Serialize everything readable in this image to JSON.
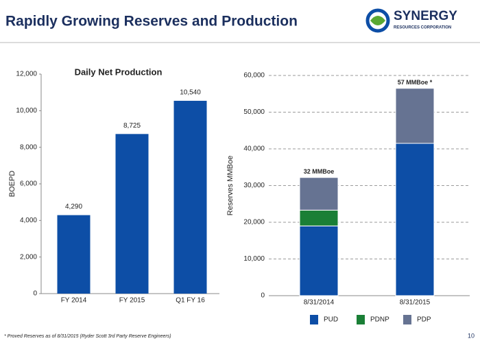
{
  "title": "Rapidly Growing Reserves and Production",
  "logo": {
    "name": "SYNERGY",
    "subtitle": "RESOURCES CORPORATION"
  },
  "footnote": "* Proved Reserves as of  8/31/2015  (Ryder Scott 3rd Party Reserve Engineers)",
  "page_number": "10",
  "chart_data": [
    {
      "type": "bar",
      "title": "Daily Net Production",
      "y_label": "BOEPD",
      "categories": [
        "FY 2014",
        "FY 2015",
        "Q1 FY 16"
      ],
      "values": [
        4290,
        8725,
        10540
      ],
      "value_labels": [
        "4,290",
        "8,725",
        "10,540"
      ],
      "color": "#0d4ea6",
      "grid": false,
      "ylim": [
        0,
        12000
      ],
      "yticks": [
        0,
        {
          "value": 2000,
          "label": "2,000"
        },
        {
          "value": 4000,
          "label": "4,000"
        },
        {
          "value": 6000,
          "label": "6,000"
        },
        {
          "value": 8000,
          "label": "8,000"
        },
        {
          "value": 10000,
          "label": "10,000"
        },
        {
          "value": 12000,
          "label": "12,000"
        }
      ]
    },
    {
      "type": "stacked_bar",
      "y_label": "Reserves MMBoe",
      "categories": [
        "8/31/2014",
        "8/31/2015"
      ],
      "series": [
        {
          "name": "PUD",
          "color": "#0d4ea6",
          "values": [
            19000,
            41500
          ]
        },
        {
          "name": "PDNP",
          "color": "#1a7f36",
          "values": [
            4300,
            0
          ]
        },
        {
          "name": "PDP",
          "color": "#667392",
          "values": [
            8900,
            15000
          ]
        }
      ],
      "total_labels": [
        "32 MMBoe",
        "57 MMBoe *"
      ],
      "grid": true,
      "legend": "bottom",
      "ylim": [
        0,
        60000
      ],
      "yticks": [
        0,
        {
          "value": 10000,
          "label": "10,000"
        },
        {
          "value": 20000,
          "label": "20,000"
        },
        {
          "value": 30000,
          "label": "30,000"
        },
        {
          "value": 40000,
          "label": "40,000"
        },
        {
          "value": 50000,
          "label": "50,000"
        },
        {
          "value": 60000,
          "label": "60,000"
        }
      ]
    }
  ]
}
